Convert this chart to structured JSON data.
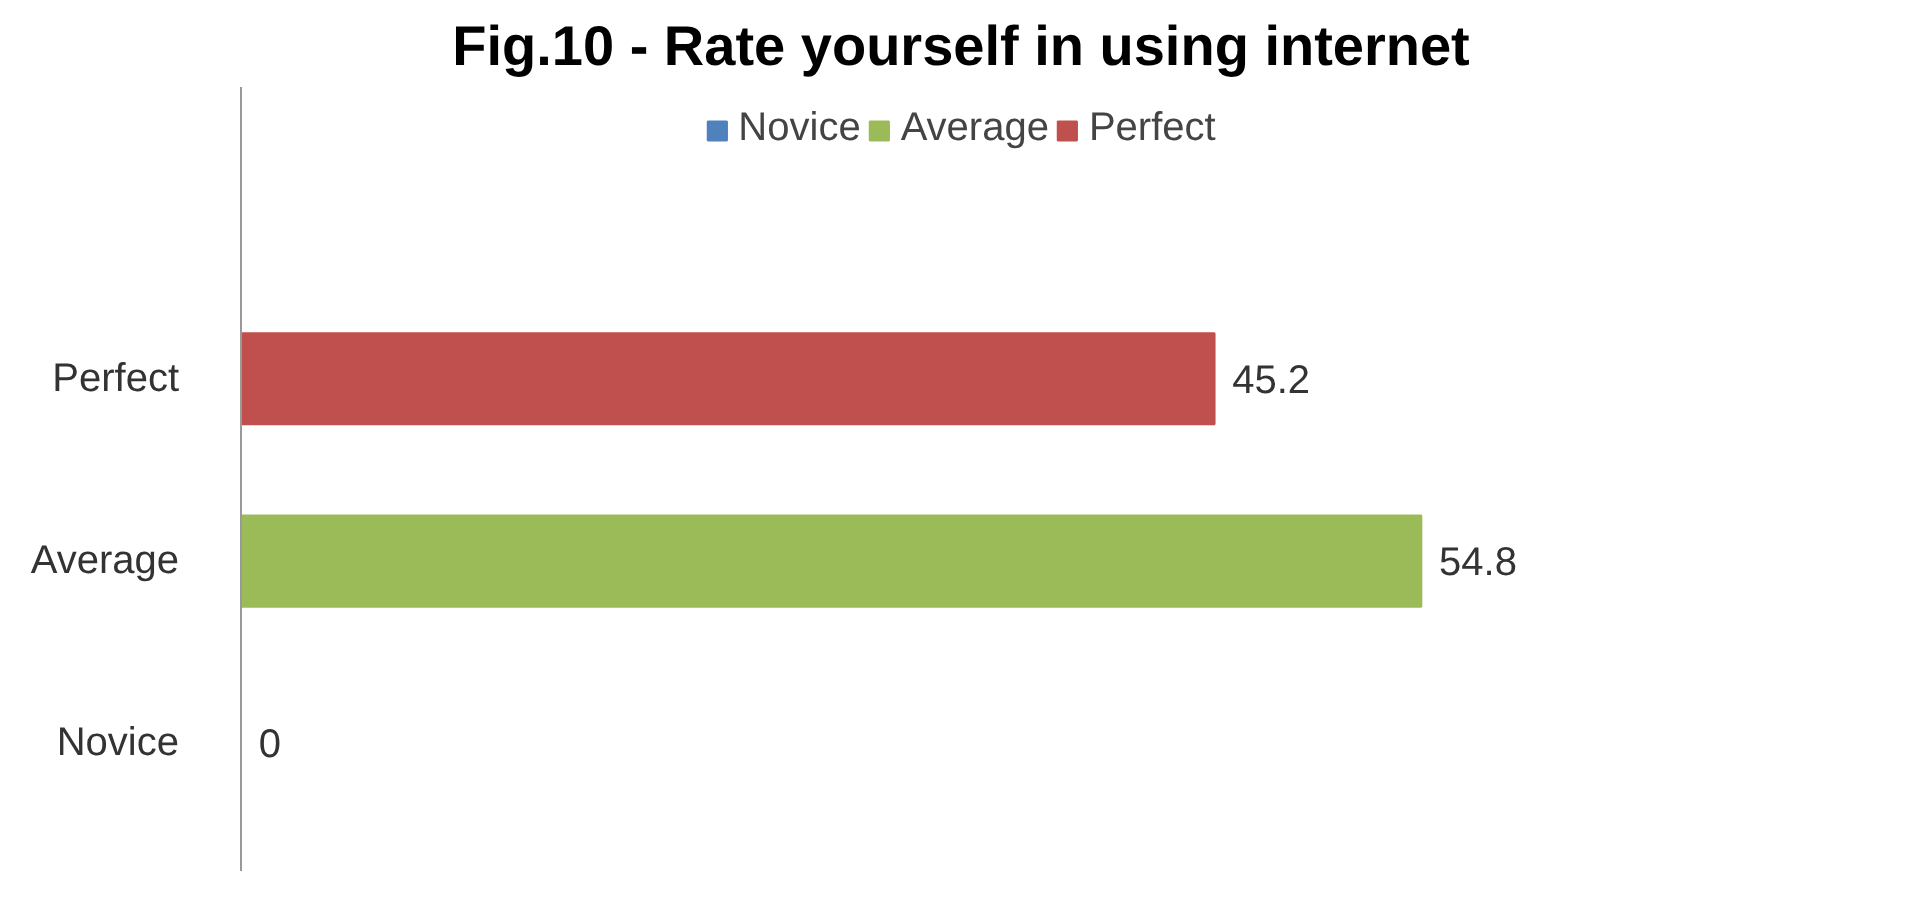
{
  "chart_data": {
    "type": "bar",
    "orientation": "horizontal",
    "title": "Fig.10 - Rate yourself in using internet",
    "categories": [
      "Perfect",
      "Average",
      "Novice"
    ],
    "series": [
      {
        "name": "Novice",
        "color": "#4f81bd",
        "values": [
          null,
          null,
          0
        ]
      },
      {
        "name": "Average",
        "color": "#9bbb59",
        "values": [
          null,
          54.8,
          null
        ]
      },
      {
        "name": "Perfect",
        "color": "#c0504d",
        "values": [
          45.2,
          null,
          null
        ]
      }
    ],
    "data_labels": true,
    "legend": "top",
    "grid": false
  }
}
